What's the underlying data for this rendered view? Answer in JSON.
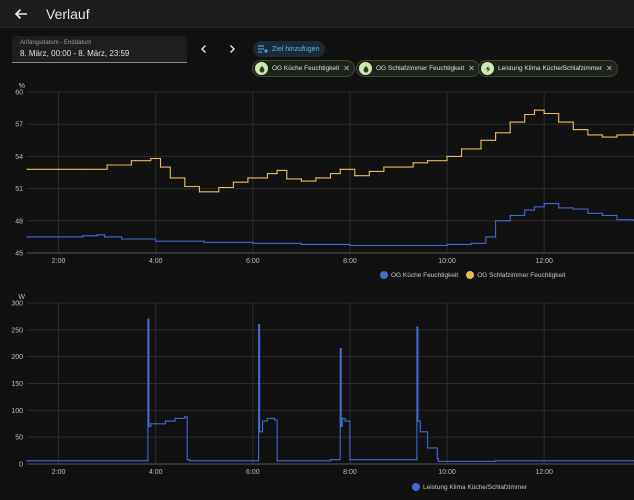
{
  "header": {
    "title": "Verlauf",
    "back_icon": "arrow-left-icon"
  },
  "date_range": {
    "label": "Anfangsdatum - Enddatum",
    "value": "8. März, 00:00 - 8. März, 23:59"
  },
  "toolbar": {
    "add_target_label": "Ziel hinzufügen",
    "prev_icon": "chevron-left-icon",
    "next_icon": "chevron-right-icon"
  },
  "targets": [
    {
      "label": "OG Küche Feuchtigkeit",
      "icon": "water-drop-icon"
    },
    {
      "label": "OG Schlafzimmer Feuchtigkeit",
      "icon": "water-drop-icon"
    },
    {
      "label": "Leistung Klima Küche/Schlafzimmer",
      "icon": "lightning-icon"
    }
  ],
  "colors": {
    "blue": "#4269d0",
    "orange": "#efb95b",
    "chip_icon_bg": "#cfe6b2",
    "accent": "#58b8f2"
  },
  "chart_data": [
    {
      "type": "line",
      "unit": "%",
      "ylim": [
        45,
        60
      ],
      "yticks": [
        45,
        48,
        51,
        54,
        57,
        60
      ],
      "xlim": [
        1.35,
        13.85
      ],
      "xticks": [
        2,
        4,
        6,
        8,
        10,
        12
      ],
      "xtick_labels": [
        "2:00",
        "4:00",
        "6:00",
        "8:00",
        "10:00",
        "12:00"
      ],
      "grid": true,
      "legend_position": "bottom-right",
      "series": [
        {
          "name": "OG Küche Feuchtigkeit",
          "color": "#4269d0",
          "x": [
            1.35,
            2.0,
            2.5,
            2.8,
            2.95,
            3.3,
            4.0,
            5.0,
            6.0,
            7.0,
            8.0,
            9.0,
            10.0,
            10.5,
            10.8,
            11.0,
            11.3,
            11.6,
            11.8,
            12.0,
            12.3,
            12.6,
            12.9,
            13.2,
            13.5,
            13.85
          ],
          "y": [
            46.5,
            46.5,
            46.6,
            46.7,
            46.5,
            46.3,
            46.1,
            46.0,
            45.9,
            45.8,
            45.7,
            45.7,
            45.8,
            45.9,
            46.5,
            48.0,
            48.5,
            49.0,
            49.3,
            49.6,
            49.2,
            49.1,
            48.7,
            48.5,
            48.1,
            48.0
          ]
        },
        {
          "name": "OG Schlafzimmer Feuchtigkeit",
          "color": "#efb95b",
          "x": [
            1.35,
            2.0,
            2.5,
            3.0,
            3.5,
            3.9,
            4.1,
            4.3,
            4.6,
            4.9,
            5.3,
            5.6,
            5.9,
            6.3,
            6.5,
            6.7,
            7.0,
            7.3,
            7.6,
            7.8,
            8.1,
            8.4,
            8.7,
            9.0,
            9.3,
            9.6,
            10.0,
            10.3,
            10.7,
            11.0,
            11.3,
            11.6,
            11.8,
            12.0,
            12.3,
            12.6,
            12.9,
            13.2,
            13.5,
            13.85
          ],
          "y": [
            52.8,
            52.8,
            52.8,
            53.2,
            53.6,
            53.8,
            53.0,
            52.0,
            51.2,
            50.7,
            51.1,
            51.6,
            52.0,
            52.4,
            52.7,
            51.9,
            51.7,
            52.0,
            52.4,
            52.8,
            52.2,
            52.6,
            53.0,
            53.0,
            53.4,
            53.6,
            54.0,
            54.7,
            55.5,
            56.2,
            57.2,
            57.9,
            58.3,
            58.0,
            57.2,
            56.5,
            56.0,
            55.8,
            56.0,
            56.3
          ]
        }
      ]
    },
    {
      "type": "line",
      "unit": "W",
      "ylim": [
        0,
        300
      ],
      "yticks": [
        0,
        50,
        100,
        150,
        200,
        250,
        300
      ],
      "xlim": [
        1.35,
        13.85
      ],
      "xticks": [
        2,
        4,
        6,
        8,
        10,
        12
      ],
      "xtick_labels": [
        "2:00",
        "4:00",
        "6:00",
        "8:00",
        "10:00",
        "12:00"
      ],
      "grid": true,
      "legend_position": "bottom-right",
      "series": [
        {
          "name": "Leistung Klima Küche/Schlafzimmer",
          "color": "#4269d0",
          "x": [
            1.35,
            3.8,
            3.84,
            3.86,
            3.9,
            4.2,
            4.4,
            4.6,
            4.65,
            4.7,
            6.0,
            6.12,
            6.14,
            6.2,
            6.3,
            6.45,
            6.5,
            7.6,
            7.8,
            7.82,
            7.84,
            7.9,
            8.0,
            8.05,
            9.2,
            9.38,
            9.4,
            9.45,
            9.6,
            9.8,
            9.82,
            11.0,
            13.85
          ],
          "y": [
            6,
            6,
            270,
            70,
            75,
            80,
            85,
            88,
            8,
            6,
            6,
            260,
            60,
            80,
            85,
            82,
            6,
            8,
            215,
            70,
            85,
            80,
            8,
            8,
            8,
            255,
            80,
            60,
            30,
            10,
            5,
            6,
            6
          ]
        }
      ]
    }
  ]
}
